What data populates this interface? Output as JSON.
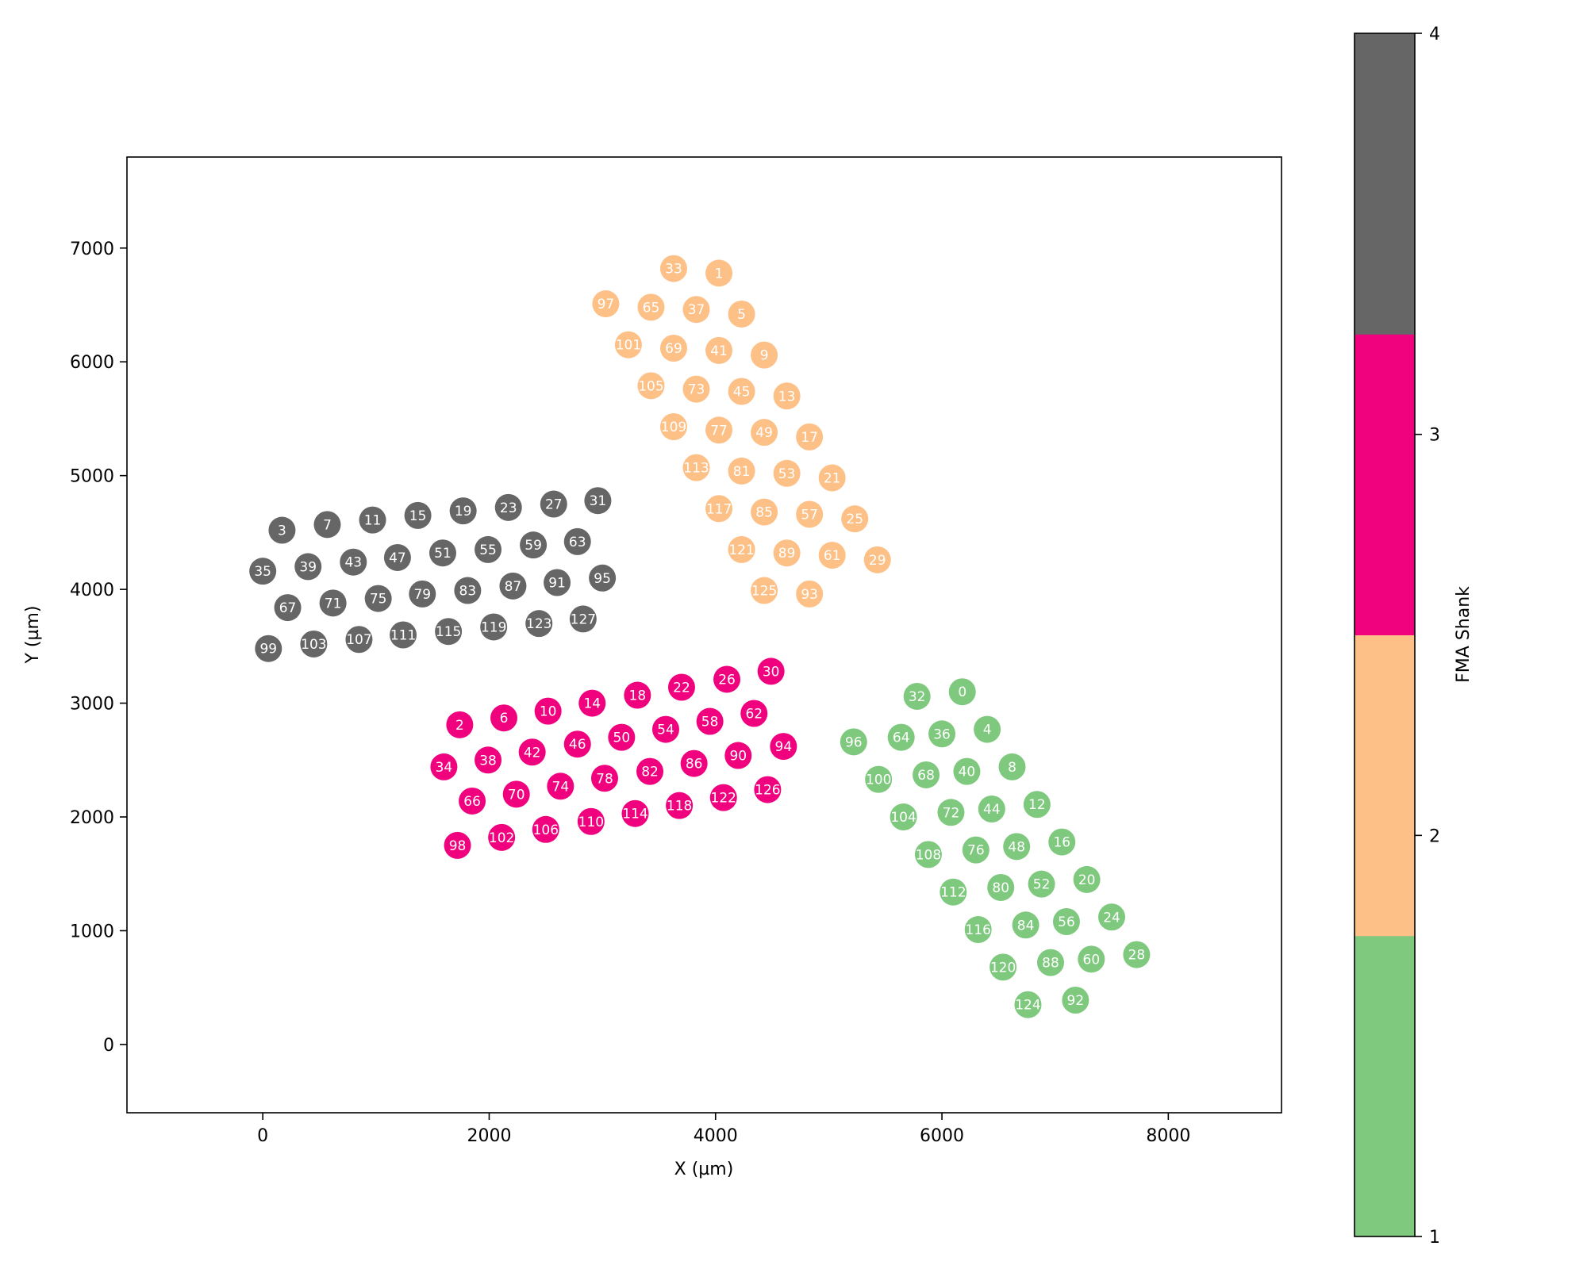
{
  "chart_data": {
    "type": "scatter",
    "title": "",
    "xlabel": "X (µm)",
    "ylabel": "Y (µm)",
    "xlim": [
      -1200,
      9000
    ],
    "ylim": [
      -600,
      7800
    ],
    "xticks": [
      0,
      2000,
      4000,
      6000,
      8000
    ],
    "yticks": [
      0,
      1000,
      2000,
      3000,
      4000,
      5000,
      6000,
      7000
    ],
    "grid": false,
    "colorbar": {
      "label": "FMA Shank",
      "ticks": [
        1,
        2,
        3,
        4
      ],
      "colors": [
        "#7fc97f",
        "#fdc086",
        "#f0027f",
        "#666666"
      ]
    },
    "series": [
      {
        "shank": 1,
        "color": "#7fc97f",
        "points": [
          [
            6180,
            3100,
            "0"
          ],
          [
            6400,
            2770,
            "4"
          ],
          [
            6620,
            2440,
            "8"
          ],
          [
            6840,
            2110,
            "12"
          ],
          [
            7060,
            1780,
            "16"
          ],
          [
            7280,
            1450,
            "20"
          ],
          [
            7500,
            1120,
            "24"
          ],
          [
            7720,
            790,
            "28"
          ],
          [
            5780,
            3060,
            "32"
          ],
          [
            6000,
            2730,
            "36"
          ],
          [
            6220,
            2400,
            "40"
          ],
          [
            6440,
            2070,
            "44"
          ],
          [
            6660,
            1740,
            "48"
          ],
          [
            6880,
            1410,
            "52"
          ],
          [
            7100,
            1080,
            "56"
          ],
          [
            7320,
            750,
            "60"
          ],
          [
            5640,
            2700,
            "64"
          ],
          [
            5860,
            2370,
            "68"
          ],
          [
            6080,
            2040,
            "72"
          ],
          [
            6300,
            1710,
            "76"
          ],
          [
            6520,
            1380,
            "80"
          ],
          [
            6740,
            1050,
            "84"
          ],
          [
            6960,
            720,
            "88"
          ],
          [
            7180,
            390,
            "92"
          ],
          [
            5220,
            2660,
            "96"
          ],
          [
            5440,
            2330,
            "100"
          ],
          [
            5660,
            2000,
            "104"
          ],
          [
            5880,
            1670,
            "108"
          ],
          [
            6100,
            1340,
            "112"
          ],
          [
            6320,
            1010,
            "116"
          ],
          [
            6540,
            680,
            "120"
          ],
          [
            6760,
            350,
            "124"
          ]
        ]
      },
      {
        "shank": 2,
        "color": "#fdc086",
        "points": [
          [
            4030,
            6780,
            "1"
          ],
          [
            4230,
            6420,
            "5"
          ],
          [
            4430,
            6060,
            "9"
          ],
          [
            4630,
            5700,
            "13"
          ],
          [
            4830,
            5340,
            "17"
          ],
          [
            5030,
            4980,
            "21"
          ],
          [
            5230,
            4620,
            "25"
          ],
          [
            5430,
            4260,
            "29"
          ],
          [
            3630,
            6820,
            "33"
          ],
          [
            3830,
            6460,
            "37"
          ],
          [
            4030,
            6100,
            "41"
          ],
          [
            4230,
            5740,
            "45"
          ],
          [
            4430,
            5380,
            "49"
          ],
          [
            4630,
            5020,
            "53"
          ],
          [
            4830,
            4660,
            "57"
          ],
          [
            5030,
            4300,
            "61"
          ],
          [
            3430,
            6480,
            "65"
          ],
          [
            3630,
            6120,
            "69"
          ],
          [
            3830,
            5760,
            "73"
          ],
          [
            4030,
            5400,
            "77"
          ],
          [
            4230,
            5040,
            "81"
          ],
          [
            4430,
            4680,
            "85"
          ],
          [
            4630,
            4320,
            "89"
          ],
          [
            4830,
            3960,
            "93"
          ],
          [
            3030,
            6510,
            "97"
          ],
          [
            3230,
            6150,
            "101"
          ],
          [
            3430,
            5790,
            "105"
          ],
          [
            3630,
            5430,
            "109"
          ],
          [
            3830,
            5070,
            "113"
          ],
          [
            4030,
            4710,
            "117"
          ],
          [
            4230,
            4350,
            "121"
          ],
          [
            4430,
            3990,
            "125"
          ]
        ]
      },
      {
        "shank": 3,
        "color": "#f0027f",
        "points": [
          [
            1740,
            2810,
            "2"
          ],
          [
            2130,
            2870,
            "6"
          ],
          [
            2520,
            2930,
            "10"
          ],
          [
            2910,
            3000,
            "14"
          ],
          [
            3310,
            3070,
            "18"
          ],
          [
            3700,
            3140,
            "22"
          ],
          [
            4100,
            3210,
            "26"
          ],
          [
            4490,
            3280,
            "30"
          ],
          [
            1600,
            2440,
            "34"
          ],
          [
            1990,
            2500,
            "38"
          ],
          [
            2380,
            2570,
            "42"
          ],
          [
            2780,
            2640,
            "46"
          ],
          [
            3170,
            2700,
            "50"
          ],
          [
            3560,
            2770,
            "54"
          ],
          [
            3950,
            2840,
            "58"
          ],
          [
            4340,
            2910,
            "62"
          ],
          [
            1850,
            2140,
            "66"
          ],
          [
            2240,
            2200,
            "70"
          ],
          [
            2630,
            2270,
            "74"
          ],
          [
            3020,
            2340,
            "78"
          ],
          [
            3420,
            2400,
            "82"
          ],
          [
            3810,
            2470,
            "86"
          ],
          [
            4200,
            2540,
            "90"
          ],
          [
            4600,
            2620,
            "94"
          ],
          [
            1720,
            1750,
            "98"
          ],
          [
            2110,
            1820,
            "102"
          ],
          [
            2500,
            1890,
            "106"
          ],
          [
            2900,
            1960,
            "110"
          ],
          [
            3290,
            2030,
            "114"
          ],
          [
            3680,
            2100,
            "118"
          ],
          [
            4070,
            2170,
            "122"
          ],
          [
            4460,
            2240,
            "126"
          ]
        ]
      },
      {
        "shank": 4,
        "color": "#666666",
        "points": [
          [
            170,
            4520,
            "3"
          ],
          [
            570,
            4570,
            "7"
          ],
          [
            970,
            4610,
            "11"
          ],
          [
            1370,
            4650,
            "15"
          ],
          [
            1770,
            4690,
            "19"
          ],
          [
            2170,
            4720,
            "23"
          ],
          [
            2570,
            4750,
            "27"
          ],
          [
            2960,
            4780,
            "31"
          ],
          [
            0,
            4160,
            "35"
          ],
          [
            400,
            4200,
            "39"
          ],
          [
            800,
            4240,
            "43"
          ],
          [
            1190,
            4280,
            "47"
          ],
          [
            1590,
            4320,
            "51"
          ],
          [
            1990,
            4350,
            "55"
          ],
          [
            2390,
            4390,
            "59"
          ],
          [
            2780,
            4420,
            "63"
          ],
          [
            220,
            3840,
            "67"
          ],
          [
            620,
            3880,
            "71"
          ],
          [
            1020,
            3920,
            "75"
          ],
          [
            1410,
            3960,
            "79"
          ],
          [
            1810,
            3990,
            "83"
          ],
          [
            2210,
            4030,
            "87"
          ],
          [
            2600,
            4060,
            "91"
          ],
          [
            3000,
            4100,
            "95"
          ],
          [
            50,
            3480,
            "99"
          ],
          [
            450,
            3520,
            "103"
          ],
          [
            850,
            3560,
            "107"
          ],
          [
            1240,
            3600,
            "111"
          ],
          [
            1640,
            3630,
            "115"
          ],
          [
            2040,
            3670,
            "119"
          ],
          [
            2440,
            3700,
            "123"
          ],
          [
            2830,
            3740,
            "127"
          ]
        ]
      }
    ]
  }
}
